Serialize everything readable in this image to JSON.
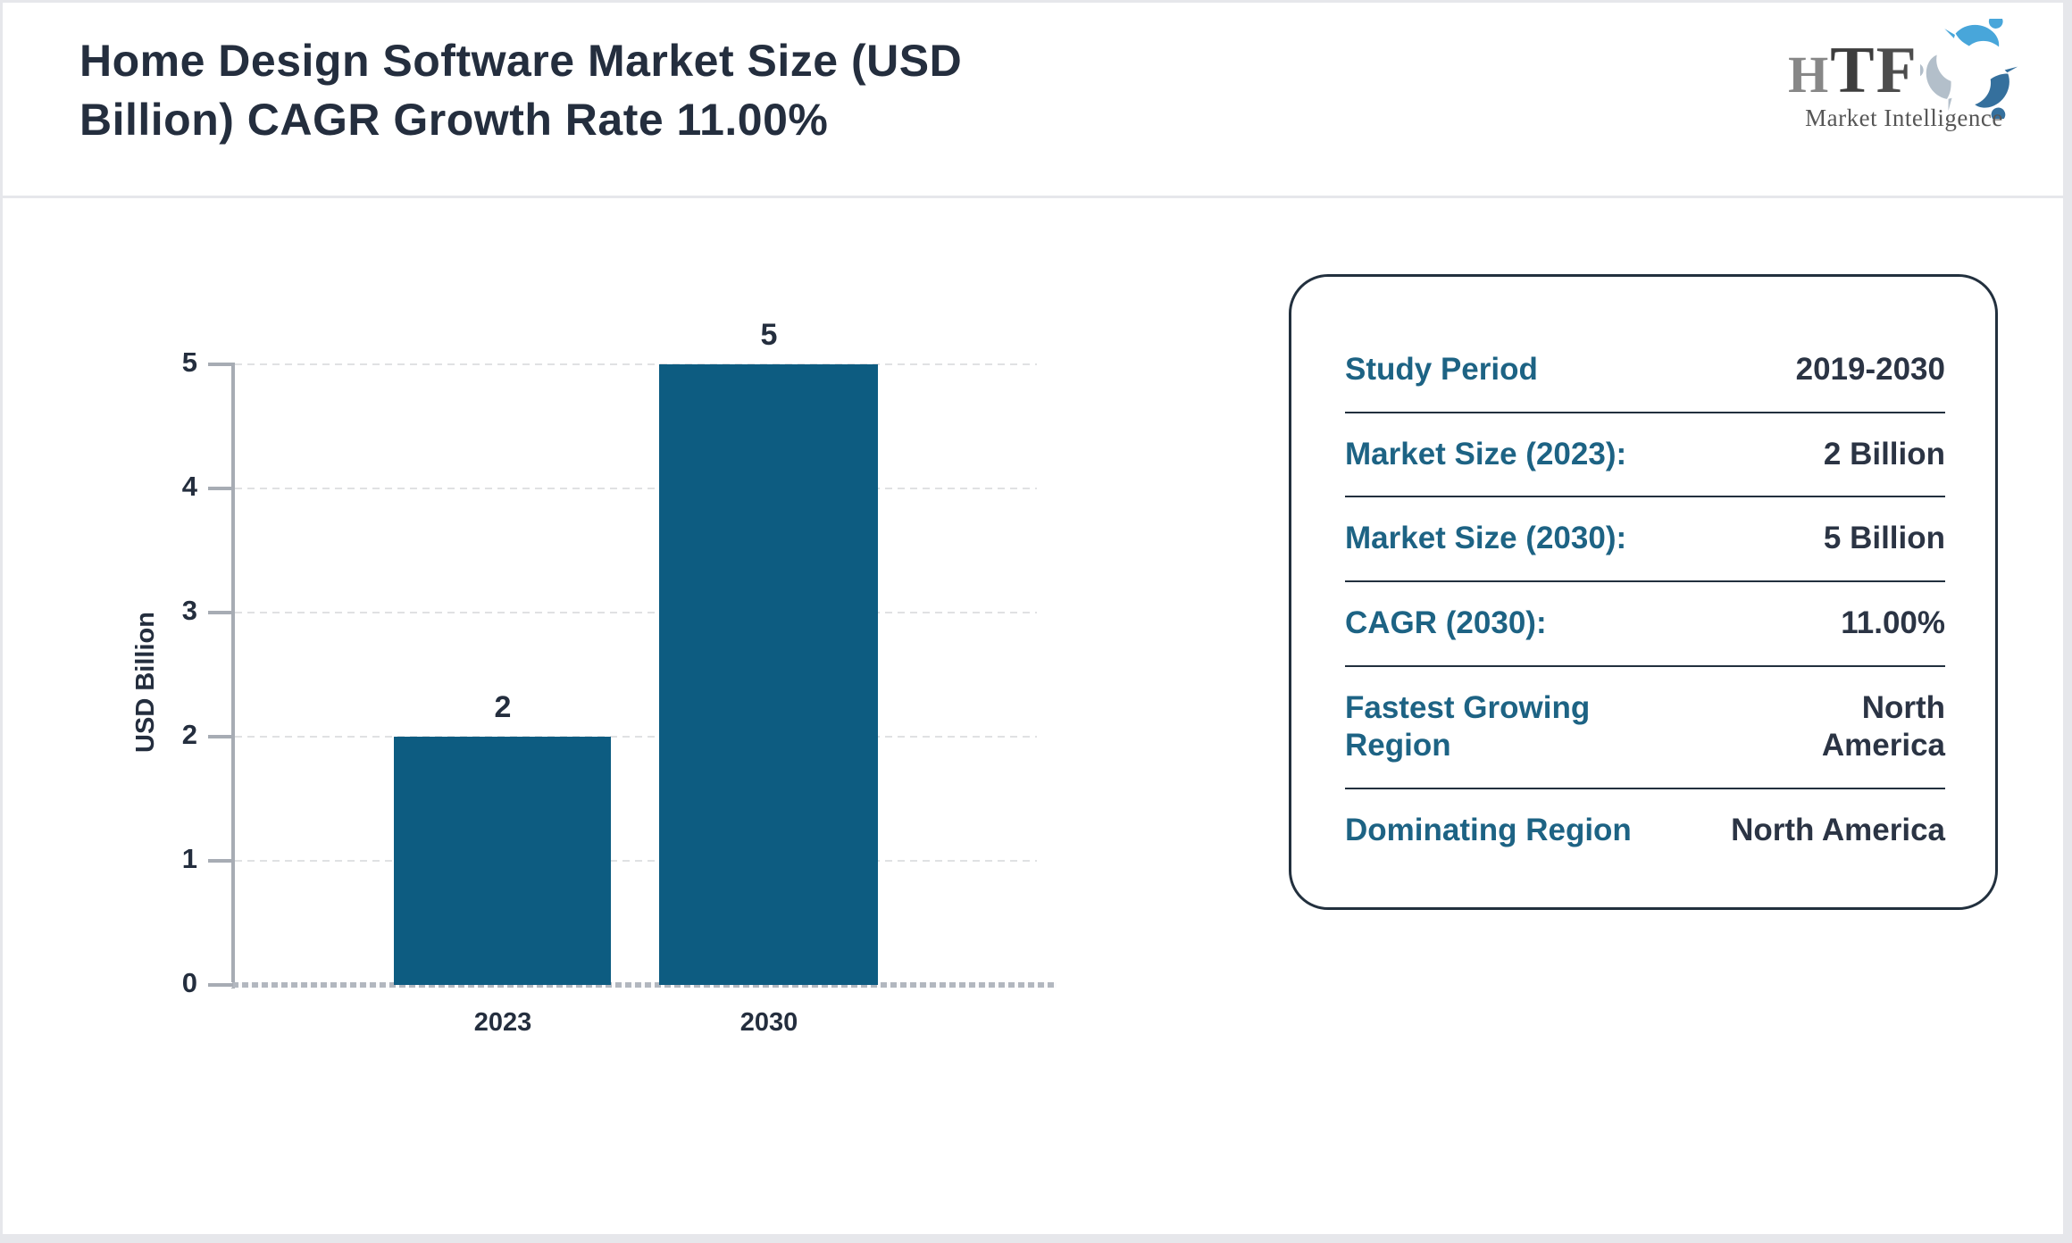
{
  "header": {
    "title": "Home Design Software Market Size (USD\nBillion) CAGR Growth Rate 11.00%"
  },
  "logo": {
    "letters": [
      "H",
      "T",
      "F"
    ],
    "tagline": "Market Intelligence",
    "icon": "triskelion-figures-icon",
    "icon_colors": {
      "light_blue": "#48a6da",
      "steel_blue": "#35709d",
      "gray_blue": "#b3bfca"
    }
  },
  "chart_data": {
    "type": "bar",
    "title": "Home Design Software Market Size (USD Billion) CAGR Growth Rate 11.00%",
    "categories": [
      "2023",
      "2030"
    ],
    "values": [
      2,
      5
    ],
    "xlabel": "",
    "ylabel": "USD Billion",
    "yticks": [
      0,
      1,
      2,
      3,
      4,
      5
    ],
    "ylim": [
      0,
      5
    ],
    "grid": "horizontal-dashed",
    "legend": "none",
    "bar_color": "#0d5c81"
  },
  "panel": {
    "rows": [
      {
        "label": "Study Period",
        "value": "2019-2030"
      },
      {
        "label": "Market Size (2023):",
        "value": "2 Billion"
      },
      {
        "label": "Market Size (2030):",
        "value": "5 Billion"
      },
      {
        "label": "CAGR (2030):",
        "value": "11.00%"
      },
      {
        "label": "Fastest Growing Region",
        "value": "North America"
      },
      {
        "label": "Dominating Region",
        "value": "North America"
      }
    ]
  },
  "colors": {
    "ink": "#242e3e",
    "teal_label": "#1d6384",
    "bar": "#0d5c81",
    "axis_gray": "#a7acb4",
    "grid_gray": "#e0e1e3",
    "panel_border": "#22303e",
    "frame_gray": "#e6e7eb"
  }
}
